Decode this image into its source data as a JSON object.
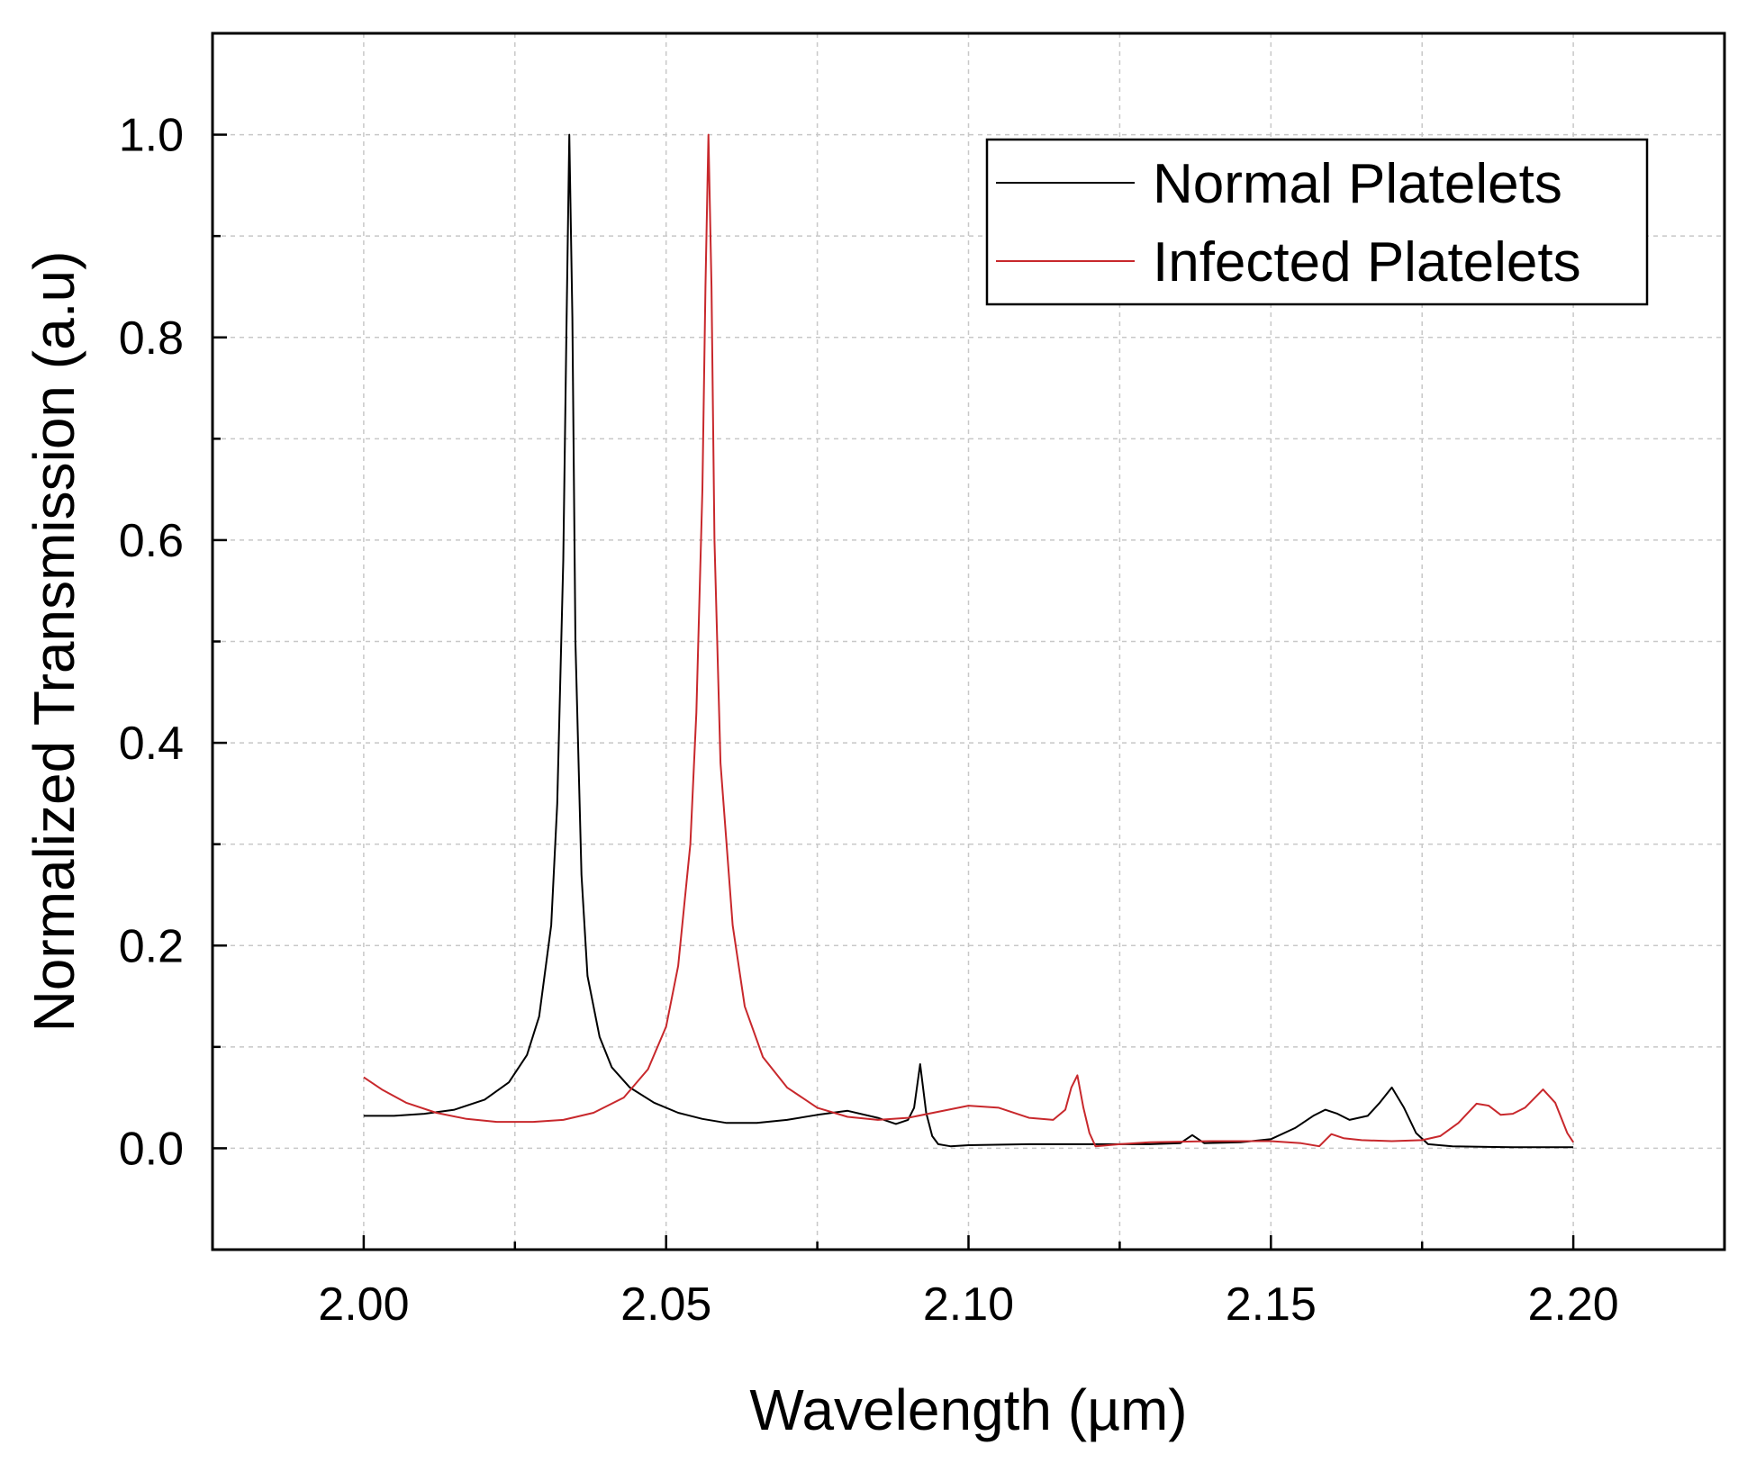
{
  "chart_data": {
    "type": "line",
    "title": "",
    "xlabel": "Wavelength  (µm)",
    "ylabel": "Normalized Transmission (a.u)",
    "xlim": [
      1.975,
      2.225
    ],
    "ylim": [
      -0.1,
      1.1
    ],
    "grid": true,
    "legend_position": "top-right",
    "x_ticks": [
      2.0,
      2.05,
      2.1,
      2.15,
      2.2
    ],
    "x_tick_labels": [
      "2.00",
      "2.05",
      "2.10",
      "2.15",
      "2.20"
    ],
    "y_ticks": [
      0.0,
      0.2,
      0.4,
      0.6,
      0.8,
      1.0
    ],
    "y_tick_labels": [
      "0.0",
      "0.2",
      "0.4",
      "0.6",
      "0.8",
      "1.0"
    ],
    "series": [
      {
        "name": "Normal Platelets",
        "color": "#000000",
        "x": [
          2.0,
          2.005,
          2.01,
          2.015,
          2.02,
          2.024,
          2.027,
          2.029,
          2.031,
          2.032,
          2.033,
          2.0335,
          2.034,
          2.0345,
          2.035,
          2.036,
          2.037,
          2.039,
          2.041,
          2.044,
          2.048,
          2.052,
          2.056,
          2.06,
          2.065,
          2.07,
          2.075,
          2.08,
          2.085,
          2.088,
          2.09,
          2.091,
          2.092,
          2.093,
          2.094,
          2.095,
          2.097,
          2.1,
          2.11,
          2.12,
          2.13,
          2.135,
          2.137,
          2.139,
          2.145,
          2.15,
          2.154,
          2.157,
          2.159,
          2.161,
          2.163,
          2.166,
          2.168,
          2.17,
          2.172,
          2.174,
          2.176,
          2.18,
          2.19,
          2.2
        ],
        "y": [
          0.032,
          0.032,
          0.034,
          0.038,
          0.048,
          0.065,
          0.092,
          0.13,
          0.22,
          0.34,
          0.58,
          0.8,
          1.0,
          0.82,
          0.5,
          0.27,
          0.17,
          0.11,
          0.08,
          0.06,
          0.045,
          0.035,
          0.029,
          0.025,
          0.025,
          0.028,
          0.033,
          0.037,
          0.03,
          0.024,
          0.028,
          0.04,
          0.083,
          0.035,
          0.012,
          0.004,
          0.002,
          0.003,
          0.004,
          0.004,
          0.004,
          0.005,
          0.013,
          0.005,
          0.006,
          0.009,
          0.02,
          0.032,
          0.038,
          0.034,
          0.028,
          0.032,
          0.045,
          0.06,
          0.04,
          0.015,
          0.004,
          0.002,
          0.001,
          0.001
        ]
      },
      {
        "name": "Infected Platelets",
        "color": "#c8282c",
        "x": [
          2.0,
          2.003,
          2.007,
          2.012,
          2.017,
          2.022,
          2.028,
          2.033,
          2.038,
          2.043,
          2.047,
          2.05,
          2.052,
          2.054,
          2.055,
          2.056,
          2.0565,
          2.057,
          2.0575,
          2.058,
          2.059,
          2.061,
          2.063,
          2.066,
          2.07,
          2.075,
          2.08,
          2.085,
          2.09,
          2.095,
          2.1,
          2.105,
          2.11,
          2.114,
          2.116,
          2.117,
          2.118,
          2.119,
          2.12,
          2.121,
          2.125,
          2.13,
          2.14,
          2.15,
          2.155,
          2.158,
          2.159,
          2.16,
          2.162,
          2.165,
          2.17,
          2.175,
          2.178,
          2.181,
          2.184,
          2.186,
          2.188,
          2.19,
          2.192,
          2.195,
          2.197,
          2.199,
          2.2
        ],
        "y": [
          0.07,
          0.058,
          0.045,
          0.035,
          0.029,
          0.026,
          0.026,
          0.028,
          0.035,
          0.05,
          0.078,
          0.12,
          0.18,
          0.3,
          0.43,
          0.65,
          0.85,
          1.0,
          0.85,
          0.6,
          0.38,
          0.22,
          0.14,
          0.09,
          0.06,
          0.04,
          0.031,
          0.028,
          0.03,
          0.036,
          0.042,
          0.04,
          0.03,
          0.028,
          0.038,
          0.06,
          0.072,
          0.04,
          0.015,
          0.002,
          0.004,
          0.006,
          0.007,
          0.007,
          0.005,
          0.002,
          0.008,
          0.014,
          0.01,
          0.008,
          0.007,
          0.008,
          0.012,
          0.025,
          0.044,
          0.042,
          0.033,
          0.034,
          0.04,
          0.058,
          0.045,
          0.015,
          0.006
        ]
      }
    ]
  }
}
